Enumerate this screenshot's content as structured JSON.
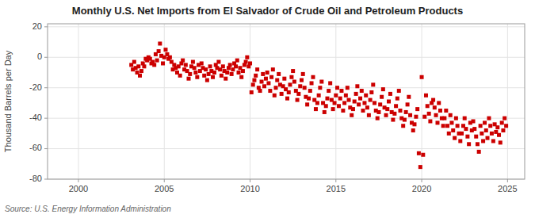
{
  "chart_data": {
    "type": "scatter",
    "title": "Monthly U.S. Net Imports from El Salvador of Crude Oil and Petroleum Products",
    "y_label": "Thousand Barrels per Day",
    "source": "Source: U.S. Energy Information Administration",
    "color": "#cc0000",
    "marker": "square",
    "grid": true,
    "xlim": [
      1998.2,
      2026.0
    ],
    "xticks": [
      2000,
      2005,
      2010,
      2015,
      2020,
      2025
    ],
    "ylim": [
      -80,
      22
    ],
    "yticks": [
      -80,
      -60,
      -40,
      -20,
      0,
      20
    ],
    "x": [
      2003.08,
      2003.17,
      2003.25,
      2003.33,
      2003.42,
      2003.5,
      2003.58,
      2003.67,
      2003.75,
      2003.83,
      2003.92,
      2004.0,
      2004.08,
      2004.17,
      2004.25,
      2004.33,
      2004.42,
      2004.5,
      2004.58,
      2004.67,
      2004.75,
      2004.83,
      2004.92,
      2005.0,
      2005.08,
      2005.17,
      2005.25,
      2005.33,
      2005.42,
      2005.5,
      2005.58,
      2005.67,
      2005.75,
      2005.83,
      2005.92,
      2006.0,
      2006.08,
      2006.17,
      2006.25,
      2006.33,
      2006.42,
      2006.5,
      2006.58,
      2006.67,
      2006.75,
      2006.83,
      2006.92,
      2007.0,
      2007.08,
      2007.17,
      2007.25,
      2007.33,
      2007.42,
      2007.5,
      2007.58,
      2007.67,
      2007.75,
      2007.83,
      2007.92,
      2008.0,
      2008.08,
      2008.17,
      2008.25,
      2008.33,
      2008.42,
      2008.5,
      2008.58,
      2008.67,
      2008.75,
      2008.83,
      2008.92,
      2009.0,
      2009.08,
      2009.17,
      2009.25,
      2009.33,
      2009.42,
      2009.5,
      2009.58,
      2009.67,
      2009.75,
      2009.83,
      2009.92,
      2010.0,
      2010.08,
      2010.17,
      2010.25,
      2010.33,
      2010.42,
      2010.5,
      2010.58,
      2010.67,
      2010.75,
      2010.83,
      2010.92,
      2011.0,
      2011.08,
      2011.17,
      2011.25,
      2011.33,
      2011.42,
      2011.5,
      2011.58,
      2011.67,
      2011.75,
      2011.83,
      2011.92,
      2012.0,
      2012.08,
      2012.17,
      2012.25,
      2012.33,
      2012.42,
      2012.5,
      2012.58,
      2012.67,
      2012.75,
      2012.83,
      2012.92,
      2013.0,
      2013.08,
      2013.17,
      2013.25,
      2013.33,
      2013.42,
      2013.5,
      2013.58,
      2013.67,
      2013.75,
      2013.83,
      2013.92,
      2014.0,
      2014.08,
      2014.17,
      2014.25,
      2014.33,
      2014.42,
      2014.5,
      2014.58,
      2014.67,
      2014.75,
      2014.83,
      2014.92,
      2015.0,
      2015.08,
      2015.17,
      2015.25,
      2015.33,
      2015.42,
      2015.5,
      2015.58,
      2015.67,
      2015.75,
      2015.83,
      2015.92,
      2016.0,
      2016.08,
      2016.17,
      2016.25,
      2016.33,
      2016.42,
      2016.5,
      2016.58,
      2016.67,
      2016.75,
      2016.83,
      2016.92,
      2017.0,
      2017.08,
      2017.17,
      2017.25,
      2017.33,
      2017.42,
      2017.5,
      2017.58,
      2017.67,
      2017.75,
      2017.83,
      2017.92,
      2018.0,
      2018.08,
      2018.17,
      2018.25,
      2018.33,
      2018.42,
      2018.5,
      2018.58,
      2018.67,
      2018.75,
      2018.83,
      2018.92,
      2019.0,
      2019.08,
      2019.17,
      2019.25,
      2019.33,
      2019.42,
      2019.5,
      2019.58,
      2019.67,
      2019.75,
      2019.83,
      2019.92,
      2020.0,
      2020.08,
      2020.17,
      2020.25,
      2020.33,
      2020.42,
      2020.5,
      2020.58,
      2020.67,
      2020.75,
      2020.83,
      2020.92,
      2021.0,
      2021.08,
      2021.17,
      2021.25,
      2021.33,
      2021.42,
      2021.5,
      2021.58,
      2021.67,
      2021.75,
      2021.83,
      2021.92,
      2022.0,
      2022.08,
      2022.17,
      2022.25,
      2022.33,
      2022.42,
      2022.5,
      2022.58,
      2022.67,
      2022.75,
      2022.83,
      2022.92,
      2023.0,
      2023.08,
      2023.17,
      2023.25,
      2023.33,
      2023.42,
      2023.5,
      2023.58,
      2023.67,
      2023.75,
      2023.83,
      2023.92,
      2024.0,
      2024.08,
      2024.17,
      2024.25,
      2024.33,
      2024.42,
      2024.5,
      2024.58,
      2024.67,
      2024.75,
      2024.83,
      2024.92
    ],
    "values": [
      -5,
      -8,
      -3,
      -7,
      -10,
      -6,
      -12,
      -9,
      -4,
      -6,
      -1,
      -2,
      0,
      -1,
      -4,
      -3,
      -5,
      2,
      -2,
      4,
      9,
      1,
      -4,
      0,
      5,
      2,
      -1,
      0,
      -3,
      -8,
      -5,
      -7,
      -10,
      -6,
      -12,
      -4,
      -2,
      -8,
      -5,
      -9,
      -14,
      -11,
      -6,
      -3,
      -7,
      -10,
      -13,
      -5,
      -9,
      -4,
      -7,
      -12,
      -8,
      -15,
      -11,
      -6,
      -9,
      -13,
      -10,
      -5,
      -7,
      -3,
      -8,
      -12,
      -6,
      -9,
      -14,
      -10,
      -7,
      -5,
      -11,
      -8,
      -4,
      -6,
      -2,
      -10,
      -7,
      -13,
      -9,
      -5,
      -3,
      0,
      -6,
      -4,
      -23,
      -18,
      -15,
      -12,
      -8,
      -20,
      -22,
      -16,
      -11,
      -19,
      -14,
      -10,
      -17,
      -22,
      -13,
      -8,
      -25,
      -20,
      -15,
      -11,
      -18,
      -24,
      -19,
      -14,
      -21,
      -27,
      -23,
      -18,
      -13,
      -9,
      -16,
      -22,
      -28,
      -24,
      -19,
      -15,
      -11,
      -20,
      -26,
      -31,
      -27,
      -22,
      -17,
      -13,
      -28,
      -34,
      -30,
      -25,
      -20,
      -16,
      -30,
      -36,
      -32,
      -27,
      -22,
      -17,
      -28,
      -34,
      -30,
      -25,
      -20,
      -32,
      -27,
      -22,
      -35,
      -30,
      -25,
      -20,
      -28,
      -33,
      -38,
      -34,
      -29,
      -24,
      -19,
      -31,
      -27,
      -22,
      -35,
      -30,
      -25,
      -33,
      -38,
      -28,
      -23,
      -18,
      -30,
      -35,
      -40,
      -36,
      -31,
      -26,
      -21,
      -33,
      -38,
      -34,
      -29,
      -24,
      -36,
      -41,
      -37,
      -32,
      -27,
      -22,
      -35,
      -40,
      -45,
      -41,
      -36,
      -31,
      -26,
      -38,
      -43,
      -48,
      -44,
      -39,
      -34,
      -63,
      -72,
      -13,
      -64,
      -39,
      -25,
      -32,
      -37,
      -42,
      -30,
      -28,
      -33,
      -38,
      -43,
      -30,
      -35,
      -40,
      -45,
      -40,
      -35,
      -45,
      -50,
      -38,
      -43,
      -48,
      -53,
      -40,
      -45,
      -50,
      -55,
      -50,
      -45,
      -40,
      -47,
      -52,
      -57,
      -43,
      -48,
      -42,
      -47,
      -52,
      -57,
      -62,
      -45,
      -50,
      -55,
      -43,
      -48,
      -53,
      -40,
      -45,
      -50,
      -55,
      -44,
      -49,
      -46,
      -51,
      -56,
      -43,
      -48,
      -40,
      -45
    ]
  }
}
